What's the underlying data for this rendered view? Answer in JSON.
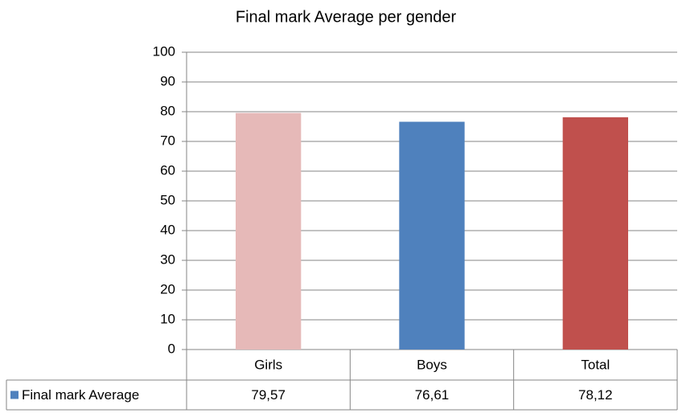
{
  "chart_data": {
    "type": "bar",
    "title": "Final mark Average per gender",
    "categories": [
      "Girls",
      "Boys",
      "Total"
    ],
    "series": [
      {
        "name": "Final mark Average",
        "color": "#4f81bd",
        "colors": [
          "#e6b9b8",
          "#4f81bd",
          "#c0504d"
        ],
        "values": [
          79.57,
          76.61,
          78.12
        ],
        "value_labels": [
          "79,57",
          "76,61",
          "78,12"
        ]
      }
    ],
    "ylim": [
      0,
      100
    ],
    "yticks": [
      0,
      10,
      20,
      30,
      40,
      50,
      60,
      70,
      80,
      90,
      100
    ],
    "grid": true
  }
}
